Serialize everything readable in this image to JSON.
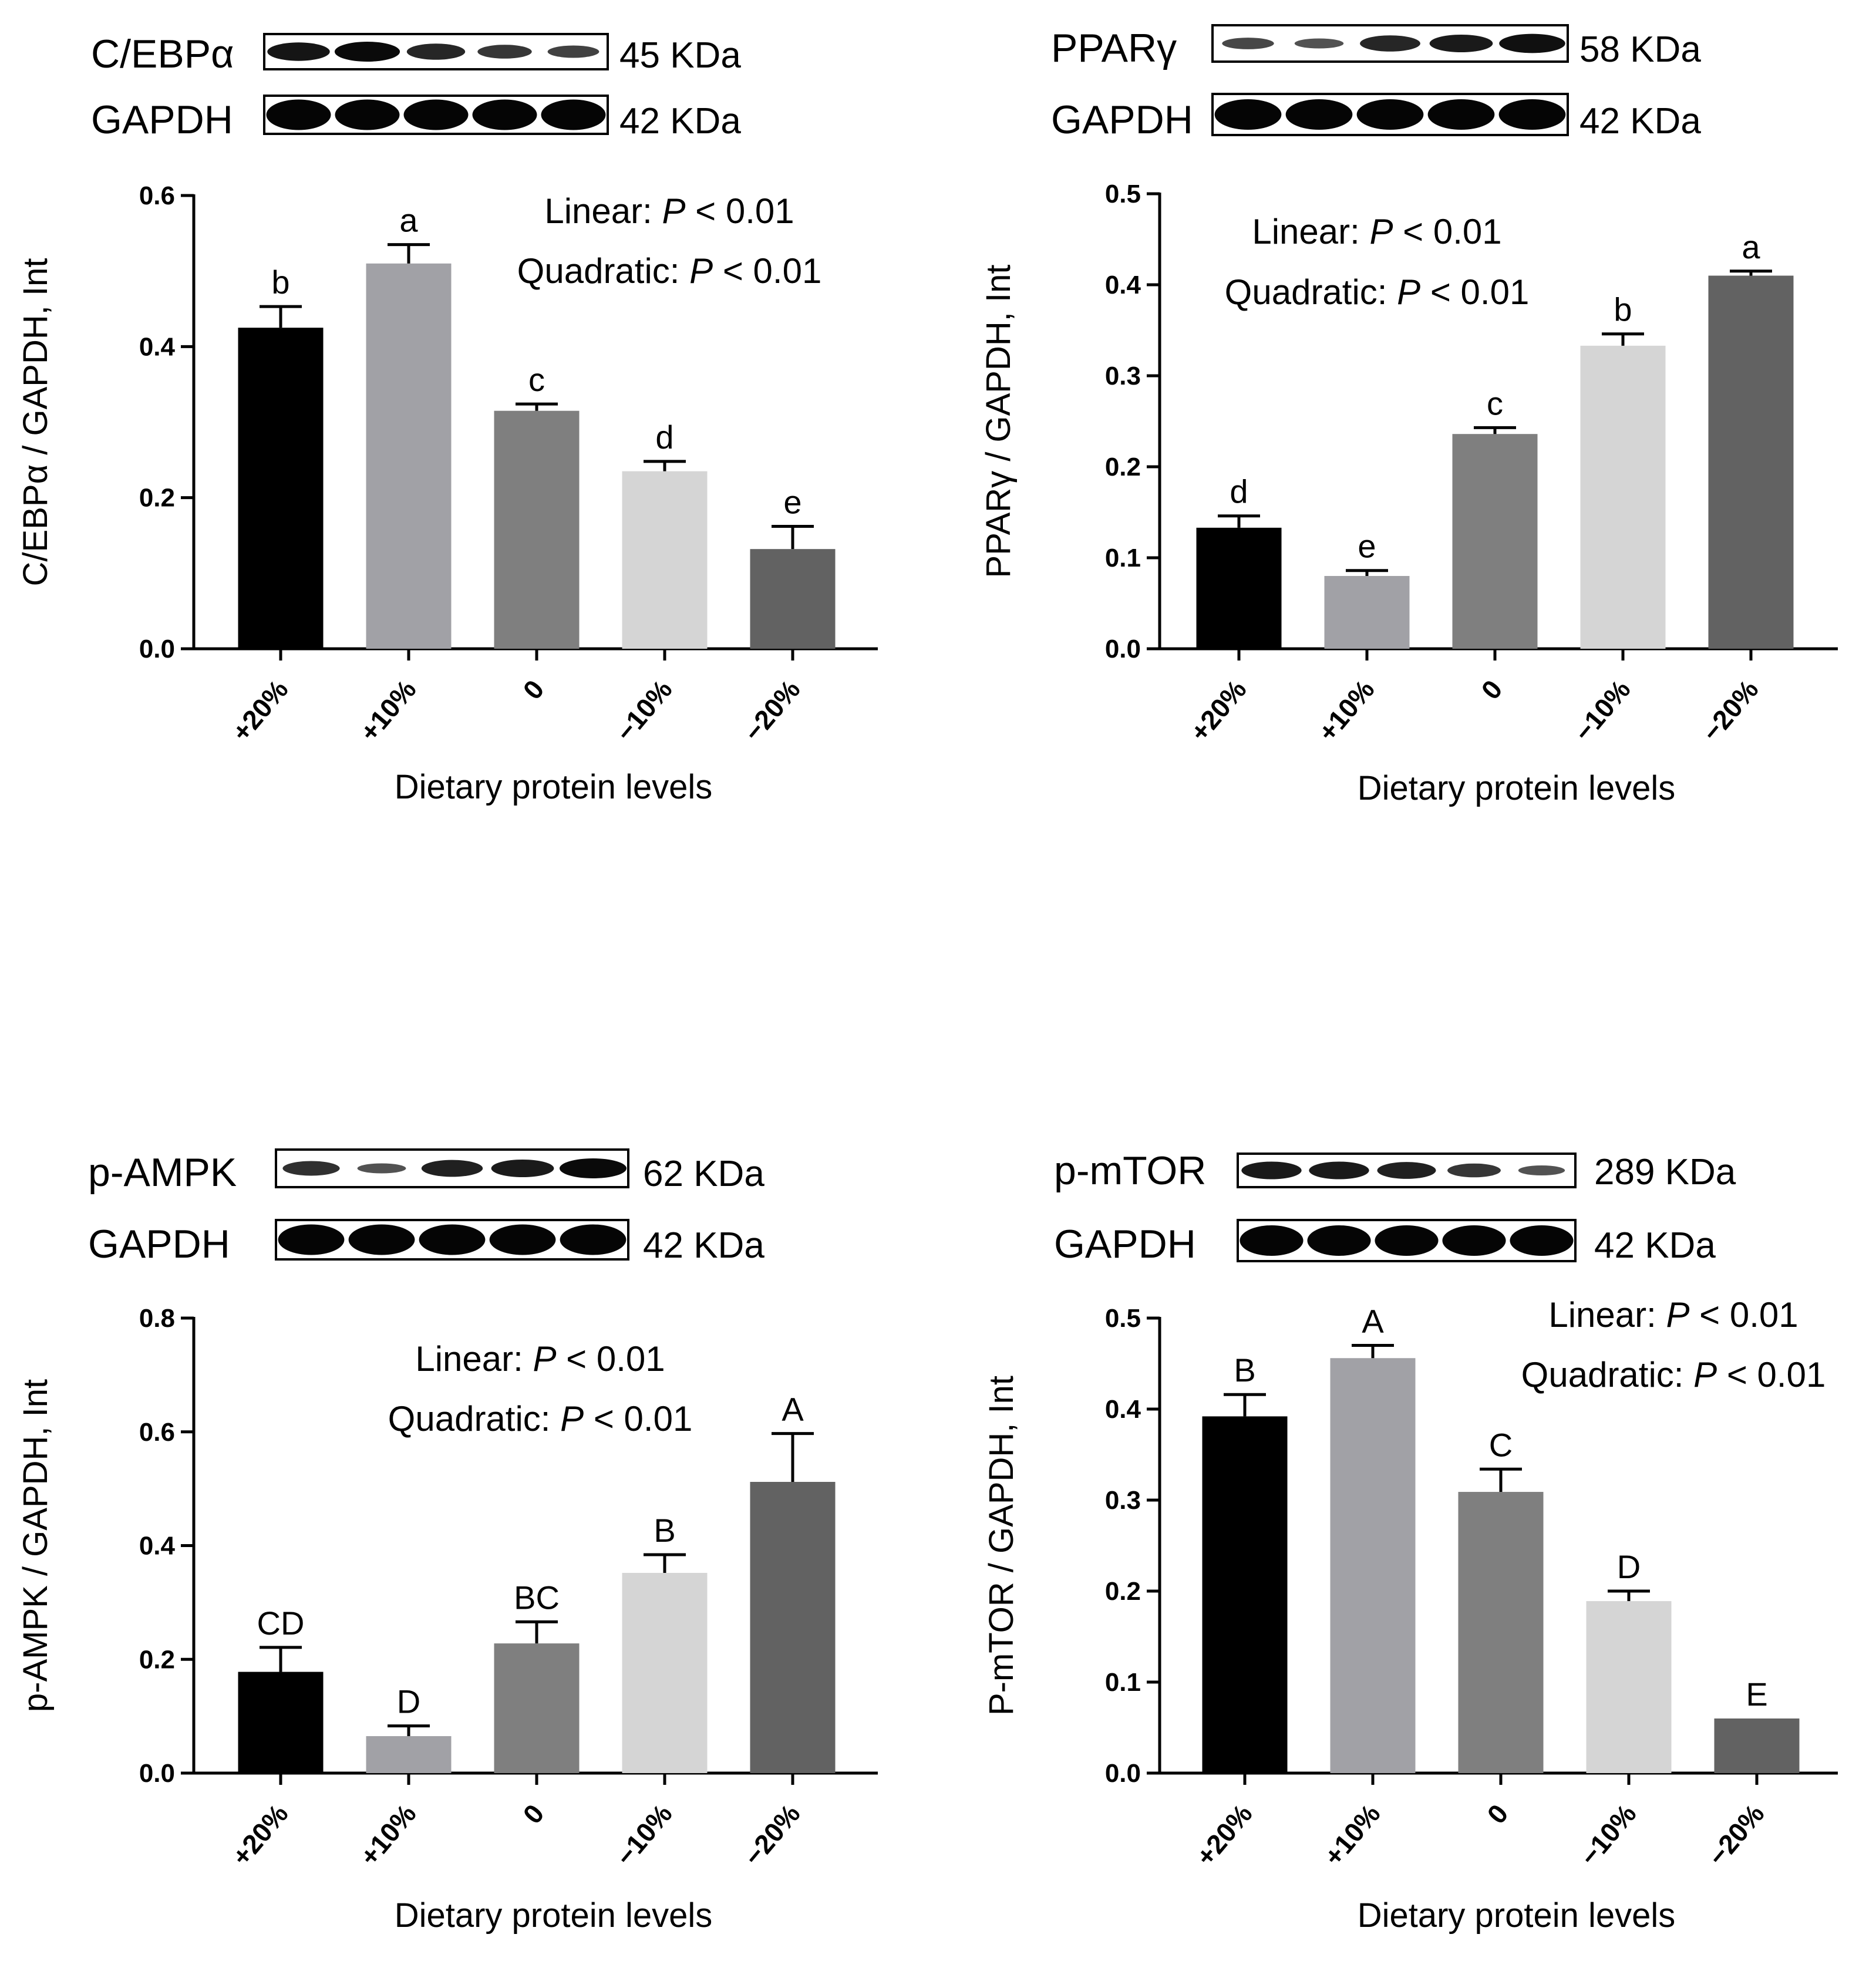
{
  "figure_title": "",
  "chart_data": [
    {
      "type": "bar",
      "id": "cebpa",
      "blot": {
        "target_label": "C/EBPα",
        "target_kda": "45 KDa",
        "target_band_intensity": [
          0.9,
          1.0,
          0.75,
          0.6,
          0.5
        ],
        "control_label": "GAPDH",
        "control_kda": "42 KDa",
        "control_band_intensity": [
          1,
          1,
          1,
          1,
          1
        ]
      },
      "categories": [
        "+20%",
        "+10%",
        "0",
        "−10%",
        "−20%"
      ],
      "values": [
        0.425,
        0.51,
        0.315,
        0.235,
        0.132
      ],
      "errors": [
        0.028,
        0.025,
        0.009,
        0.013,
        0.03
      ],
      "significance": [
        "b",
        "a",
        "c",
        "d",
        "e"
      ],
      "bar_colors": [
        "#000000",
        "#a1a1a6",
        "#7f7f7f",
        "#d5d5d5",
        "#626262"
      ],
      "ylim": [
        0,
        0.6
      ],
      "yticks": [
        "0.0",
        "0.2",
        "0.4",
        "0.6"
      ],
      "ylabel": "C/EBPα / GAPDH, Int",
      "xlabel": "Dietary protein levels",
      "stats": [
        {
          "label": "Linear: ",
          "p": "P",
          "value": " < 0.01"
        },
        {
          "label": "Quadratic: ",
          "p": "P",
          "value": " < 0.01"
        }
      ]
    },
    {
      "type": "bar",
      "id": "ppary",
      "blot": {
        "target_label": "PPARγ",
        "target_kda": "58 KDa",
        "target_band_intensity": [
          0.45,
          0.35,
          0.75,
          0.85,
          0.95
        ],
        "control_label": "GAPDH",
        "control_kda": "42 KDa",
        "control_band_intensity": [
          1,
          1,
          1,
          1,
          1
        ]
      },
      "categories": [
        "+20%",
        "+10%",
        "0",
        "−10%",
        "−20%"
      ],
      "values": [
        0.133,
        0.08,
        0.236,
        0.333,
        0.41
      ],
      "errors": [
        0.013,
        0.006,
        0.007,
        0.013,
        0.005
      ],
      "significance": [
        "d",
        "e",
        "c",
        "b",
        "a"
      ],
      "bar_colors": [
        "#000000",
        "#a1a1a6",
        "#7f7f7f",
        "#d5d5d5",
        "#626262"
      ],
      "ylim": [
        0,
        0.5
      ],
      "yticks": [
        "0.0",
        "0.1",
        "0.2",
        "0.3",
        "0.4",
        "0.5"
      ],
      "ylabel": "PPARγ / GAPDH, Int",
      "xlabel": "Dietary protein levels",
      "stats": [
        {
          "label": "Linear: ",
          "p": "P",
          "value": " < 0.01"
        },
        {
          "label": "Quadratic: ",
          "p": "P",
          "value": " < 0.01"
        }
      ]
    },
    {
      "type": "bar",
      "id": "pampk",
      "blot": {
        "target_label": "p-AMPK",
        "target_kda": "62 KDa",
        "target_band_intensity": [
          0.65,
          0.35,
          0.8,
          0.85,
          1.0
        ],
        "control_label": "GAPDH",
        "control_kda": "42 KDa",
        "control_band_intensity": [
          1,
          1,
          1,
          1,
          1
        ]
      },
      "categories": [
        "+20%",
        "+10%",
        "0",
        "−10%",
        "−20%"
      ],
      "values": [
        0.178,
        0.065,
        0.228,
        0.352,
        0.512
      ],
      "errors": [
        0.043,
        0.018,
        0.038,
        0.032,
        0.085
      ],
      "significance": [
        "CD",
        "D",
        "BC",
        "B",
        "A"
      ],
      "bar_colors": [
        "#000000",
        "#a1a1a6",
        "#7f7f7f",
        "#d5d5d5",
        "#626262"
      ],
      "ylim": [
        0,
        0.8
      ],
      "yticks": [
        "0.0",
        "0.2",
        "0.4",
        "0.6",
        "0.8"
      ],
      "ylabel": "p-AMPK / GAPDH, Int",
      "xlabel": "Dietary protein levels",
      "stats": [
        {
          "label": "Linear: ",
          "p": "P",
          "value": " < 0.01"
        },
        {
          "label": "Quadratic: ",
          "p": "P",
          "value": " < 0.01"
        }
      ]
    },
    {
      "type": "bar",
      "id": "pmtor",
      "blot": {
        "target_label": "p-mTOR",
        "target_kda": "289 KDa",
        "target_band_intensity": [
          0.85,
          0.85,
          0.8,
          0.6,
          0.35
        ],
        "control_label": "GAPDH",
        "control_kda": "42 KDa",
        "control_band_intensity": [
          1,
          1,
          1,
          1,
          1
        ]
      },
      "categories": [
        "+20%",
        "+10%",
        "0",
        "−10%",
        "−20%"
      ],
      "values": [
        0.392,
        0.456,
        0.309,
        0.189,
        0.06
      ],
      "errors": [
        0.024,
        0.014,
        0.025,
        0.011,
        0.0
      ],
      "significance": [
        "B",
        "A",
        "C",
        "D",
        "E"
      ],
      "bar_colors": [
        "#000000",
        "#a1a1a6",
        "#7f7f7f",
        "#d5d5d5",
        "#626262"
      ],
      "ylim": [
        0,
        0.5
      ],
      "yticks": [
        "0.0",
        "0.1",
        "0.2",
        "0.3",
        "0.4",
        "0.5"
      ],
      "ylabel": "P-mTOR / GAPDH, Int",
      "xlabel": "Dietary protein levels",
      "stats": [
        {
          "label": "Linear: ",
          "p": "P",
          "value": " < 0.01"
        },
        {
          "label": "Quadratic: ",
          "p": "P",
          "value": " < 0.01"
        }
      ]
    }
  ]
}
